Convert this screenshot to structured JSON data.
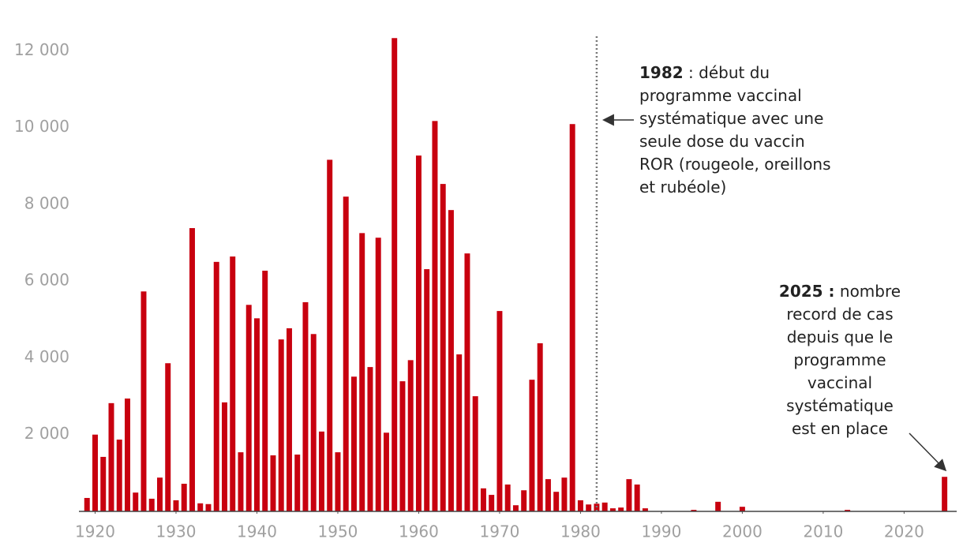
{
  "chart_data": {
    "type": "bar",
    "color": "#c8000f",
    "x": [
      1919,
      1920,
      1921,
      1922,
      1923,
      1924,
      1925,
      1926,
      1927,
      1928,
      1929,
      1930,
      1931,
      1932,
      1933,
      1934,
      1935,
      1936,
      1937,
      1938,
      1939,
      1940,
      1941,
      1942,
      1943,
      1944,
      1945,
      1946,
      1947,
      1948,
      1949,
      1950,
      1951,
      1952,
      1953,
      1954,
      1955,
      1956,
      1957,
      1958,
      1959,
      1960,
      1961,
      1962,
      1963,
      1964,
      1965,
      1966,
      1967,
      1968,
      1969,
      1970,
      1971,
      1972,
      1973,
      1974,
      1975,
      1976,
      1977,
      1978,
      1979,
      1980,
      1981,
      1982,
      1983,
      1984,
      1985,
      1986,
      1987,
      1988,
      1994,
      1997,
      2000,
      2013,
      2025
    ],
    "values": [
      350,
      2000,
      1420,
      2820,
      1870,
      2940,
      490,
      5730,
      330,
      880,
      3860,
      290,
      720,
      7380,
      210,
      190,
      6500,
      2840,
      6640,
      1540,
      5380,
      5030,
      6270,
      1460,
      4480,
      4770,
      1480,
      5450,
      4620,
      2080,
      9160,
      1540,
      8200,
      3510,
      7250,
      3760,
      7130,
      2050,
      12330,
      3390,
      3940,
      9270,
      6310,
      10170,
      8530,
      7850,
      4090,
      6720,
      3000,
      600,
      430,
      5220,
      700,
      160,
      550,
      3430,
      4380,
      840,
      510,
      880,
      10090,
      290,
      180,
      200,
      230,
      80,
      100,
      840,
      700,
      80,
      40,
      250,
      120,
      40,
      900
    ],
    "xlim": [
      1918,
      2026.5
    ],
    "xticks": [
      1920,
      1930,
      1940,
      1950,
      1960,
      1970,
      1980,
      1990,
      2000,
      2010,
      2020
    ],
    "ylim": [
      0,
      12500
    ],
    "yticks": [
      {
        "value": 2000,
        "label": "2 000"
      },
      {
        "value": 4000,
        "label": "4 000"
      },
      {
        "value": 6000,
        "label": "6 000"
      },
      {
        "value": 8000,
        "label": "8 000"
      },
      {
        "value": 10000,
        "label": "10 000"
      },
      {
        "value": 12000,
        "label": "12 000"
      }
    ],
    "annotations": [
      {
        "x": 1982,
        "bold": "1982",
        "lines": [
          " : début du",
          "programme vaccinal",
          "systématique avec une",
          "seule dose du vaccin",
          "ROR (rougeole, oreillons",
          "et rubéole)"
        ]
      },
      {
        "bold": "2025 :",
        "lines": [
          " nombre",
          "record de cas",
          "depuis que le",
          "programme",
          "vaccinal",
          "systématique",
          "est en place"
        ]
      }
    ]
  }
}
